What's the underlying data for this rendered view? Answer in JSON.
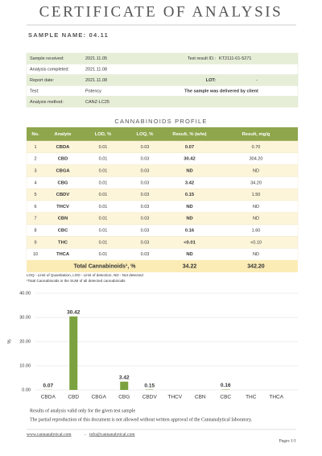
{
  "header": {
    "title": "CERTIFICATE OF ANALYSIS",
    "sample_name": "SAMPLE NAME: 04.11"
  },
  "info": {
    "rows": [
      [
        "Sample received:",
        "2021.11.05",
        "Test result ID.:",
        "KT2111-01-5271"
      ],
      [
        "Analysis completed:",
        "2021.11.08"
      ],
      [
        "Report date:",
        "2021.11.08",
        "LOT:",
        "-"
      ],
      [
        "Test:",
        "Potency",
        "The sample was delivered by client"
      ],
      [
        "Analysis method:",
        "CANZ-LC25"
      ]
    ]
  },
  "profile": {
    "title": "CANNABINOIDS PROFILE",
    "columns": [
      "No.",
      "Analyte",
      "LOD, %",
      "LOQ, %",
      "Result, % (w/w)",
      "Result, mg/g"
    ],
    "rows": [
      [
        "1",
        "CBDA",
        "0.01",
        "0.03",
        "0.07",
        "0.70"
      ],
      [
        "2",
        "CBD",
        "0.01",
        "0.03",
        "30.42",
        "304.20"
      ],
      [
        "3",
        "CBGA",
        "0.01",
        "0.03",
        "ND",
        "ND"
      ],
      [
        "4",
        "CBG",
        "0.01",
        "0.03",
        "3.42",
        "34.20"
      ],
      [
        "5",
        "CBDV",
        "0.01",
        "0.03",
        "0.15",
        "1.50"
      ],
      [
        "6",
        "THCV",
        "0.01",
        "0.03",
        "ND",
        "ND"
      ],
      [
        "7",
        "CBN",
        "0.01",
        "0.03",
        "ND",
        "ND"
      ],
      [
        "8",
        "CBC",
        "0.01",
        "0.03",
        "0.16",
        "1.60"
      ],
      [
        "9",
        "THC",
        "0.01",
        "0.03",
        "<0.01",
        "<0.10"
      ],
      [
        "10",
        "THCA",
        "0.01",
        "0.03",
        "ND",
        "ND"
      ]
    ],
    "total": [
      "Total Cannabinoids¹, %",
      "34.22",
      "342.20"
    ],
    "notes": [
      "LOQ - Limit of Quantitation, LOD - Limit of detection, ND - Not detected",
      "¹Total Cannabinoids is the SUM of all detected cannabinoids"
    ]
  },
  "chart_data": {
    "type": "bar",
    "y_label": "%",
    "categories": [
      "CBDA",
      "CBD",
      "CBGA",
      "CBG",
      "CBDV",
      "THCV",
      "CBN",
      "CBC",
      "THC",
      "THCA"
    ],
    "values": [
      0.07,
      30.42,
      null,
      3.42,
      0.15,
      null,
      null,
      0.16,
      null,
      null
    ],
    "color": "#7ba23f",
    "ylim": [
      0,
      40
    ],
    "yticks": [
      {
        "value": 0,
        "label": "0.00"
      },
      {
        "value": 10,
        "label": "10.00"
      },
      {
        "value": 20,
        "label": "20.00"
      },
      {
        "value": 30,
        "label": "30.00"
      },
      {
        "value": 40,
        "label": "40.00"
      }
    ],
    "grid": true
  },
  "remarks": [
    "Results of analysis valid only for the given test sample",
    "The partial reproduction of this document is not allowed without written approval of the Cannanalytical laboratory."
  ],
  "footer": {
    "website": "www.cannanalytical.com",
    "separator": "-",
    "email": "info@cannanalytical.com",
    "pages": "Pages 1/1"
  }
}
